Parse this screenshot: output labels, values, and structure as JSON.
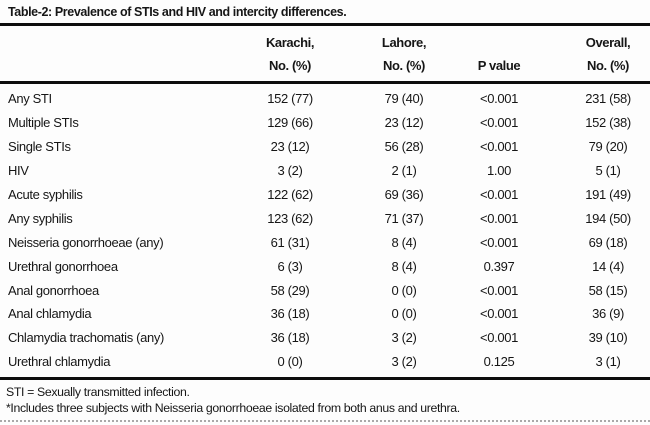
{
  "title": "Table-2: Prevalence of STIs and HIV and intercity differences.",
  "table": {
    "columns": [
      {
        "line1": "",
        "line2": ""
      },
      {
        "line1": "Karachi,",
        "line2": "No. (%)"
      },
      {
        "line1": "Lahore,",
        "line2": "No. (%)"
      },
      {
        "line1": "",
        "line2": "P value"
      },
      {
        "line1": "Overall,",
        "line2": "No. (%)"
      }
    ],
    "rows": [
      {
        "label": "Any STI",
        "karachi": "152 (77)",
        "lahore": "79 (40)",
        "p_value": "<0.001",
        "overall": "231 (58)"
      },
      {
        "label": "Multiple STIs",
        "karachi": "129 (66)",
        "lahore": "23 (12)",
        "p_value": "<0.001",
        "overall": "152 (38)"
      },
      {
        "label": "Single STIs",
        "karachi": "23 (12)",
        "lahore": "56 (28)",
        "p_value": "<0.001",
        "overall": "79 (20)"
      },
      {
        "label": "HIV",
        "karachi": "3 (2)",
        "lahore": "2 (1)",
        "p_value": "1.00",
        "overall": "5 (1)"
      },
      {
        "label": "Acute syphilis",
        "karachi": "122 (62)",
        "lahore": "69 (36)",
        "p_value": "<0.001",
        "overall": "191 (49)"
      },
      {
        "label": "Any syphilis",
        "karachi": "123 (62)",
        "lahore": "71 (37)",
        "p_value": "<0.001",
        "overall": "194 (50)"
      },
      {
        "label": "Neisseria gonorrhoeae (any)",
        "karachi": "61 (31)",
        "lahore": "8 (4)",
        "p_value": "<0.001",
        "overall": "69 (18)"
      },
      {
        "label": "Urethral gonorrhoea",
        "karachi": "6 (3)",
        "lahore": "8 (4)",
        "p_value": "0.397",
        "overall": "14 (4)"
      },
      {
        "label": "Anal gonorrhoea",
        "karachi": "58 (29)",
        "lahore": "0 (0)",
        "p_value": "<0.001",
        "overall": "58 (15)"
      },
      {
        "label": "Anal chlamydia",
        "karachi": "36 (18)",
        "lahore": "0 (0)",
        "p_value": "<0.001",
        "overall": "36 (9)"
      },
      {
        "label": "Chlamydia trachomatis (any)",
        "karachi": "36 (18)",
        "lahore": "3 (2)",
        "p_value": "<0.001",
        "overall": "39 (10)"
      },
      {
        "label": "Urethral chlamydia",
        "karachi": "0 (0)",
        "lahore": "3 (2)",
        "p_value": "0.125",
        "overall": "3 (1)"
      }
    ]
  },
  "footnotes": [
    "STI = Sexually transmitted infection.",
    "*Includes three subjects with Neisseria gonorrhoeae isolated from both anus and urethra."
  ],
  "colors": {
    "text": "#161616",
    "rule": "#0d0d0d",
    "bottom_rule": "#a9a9a9",
    "background": "#fdfdfd"
  },
  "chart_data": {
    "type": "table",
    "title": "Table-2: Prevalence of STIs and HIV and intercity differences.",
    "column_headers": [
      "",
      "Karachi, No. (%)",
      "Lahore, No. (%)",
      "P value",
      "Overall, No. (%)"
    ],
    "row_labels": [
      "Any STI",
      "Multiple STIs",
      "Single STIs",
      "HIV",
      "Acute syphilis",
      "Any syphilis",
      "Neisseria gonorrhoeae (any)",
      "Urethral gonorrhoea",
      "Anal gonorrhoea",
      "Anal chlamydia",
      "Chlamydia trachomatis (any)",
      "Urethral chlamydia"
    ],
    "cells": [
      [
        "152 (77)",
        "79 (40)",
        "<0.001",
        "231 (58)"
      ],
      [
        "129 (66)",
        "23 (12)",
        "<0.001",
        "152 (38)"
      ],
      [
        "23 (12)",
        "56 (28)",
        "<0.001",
        "79 (20)"
      ],
      [
        "3 (2)",
        "2 (1)",
        "1.00",
        "5 (1)"
      ],
      [
        "122 (62)",
        "69 (36)",
        "<0.001",
        "191 (49)"
      ],
      [
        "123 (62)",
        "71 (37)",
        "<0.001",
        "194 (50)"
      ],
      [
        "61 (31)",
        "8 (4)",
        "<0.001",
        "69 (18)"
      ],
      [
        "6 (3)",
        "8 (4)",
        "0.397",
        "14 (4)"
      ],
      [
        "58 (29)",
        "0 (0)",
        "<0.001",
        "58 (15)"
      ],
      [
        "36 (18)",
        "0 (0)",
        "<0.001",
        "36 (9)"
      ],
      [
        "36 (18)",
        "3 (2)",
        "<0.001",
        "39 (10)"
      ],
      [
        "0 (0)",
        "3 (2)",
        "0.125",
        "3 (1)"
      ]
    ]
  }
}
